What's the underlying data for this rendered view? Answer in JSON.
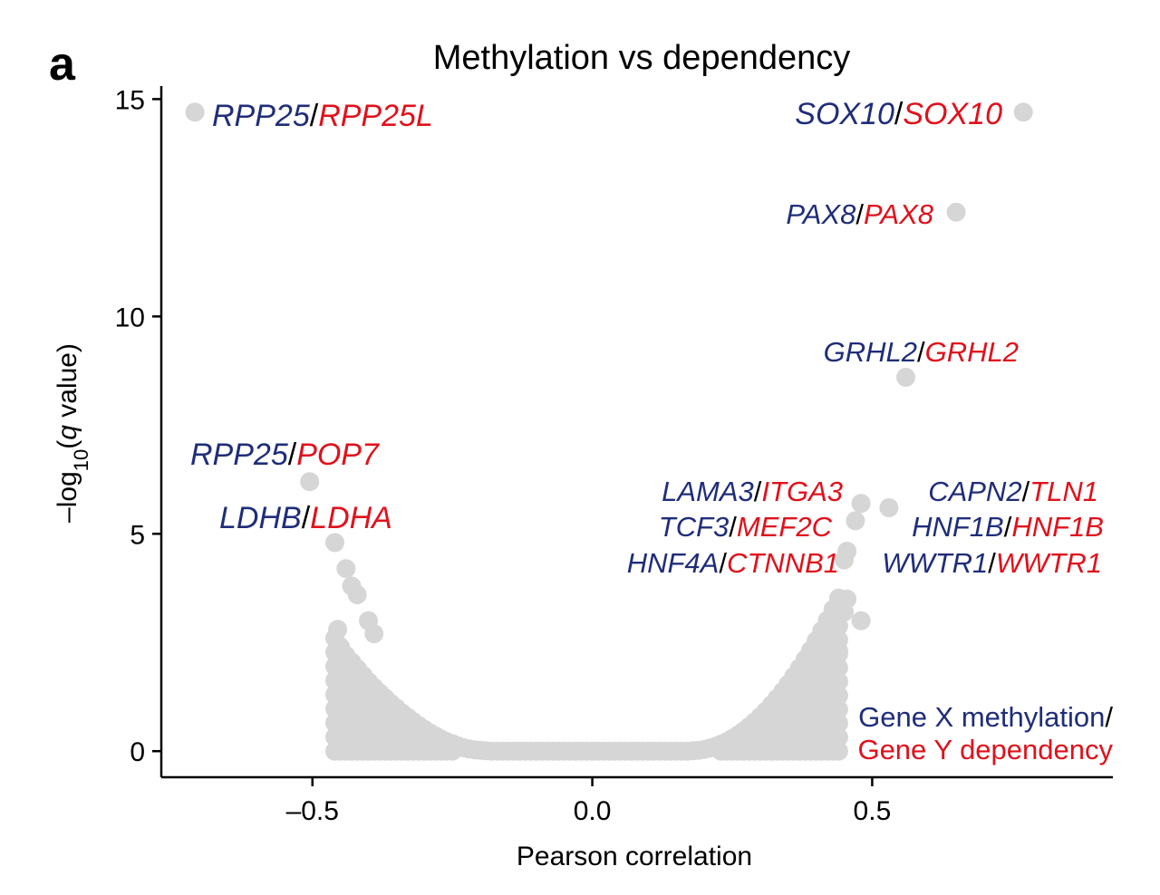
{
  "chart_data": {
    "type": "scatter",
    "panel_label": "a",
    "title": "Methylation vs dependency",
    "xlabel": "Pearson correlation",
    "ylabel": {
      "prefix": "–log",
      "sub": "10",
      "open": "(",
      "italic": "q",
      "rest": " value)"
    },
    "xlim": [
      -0.77,
      0.93
    ],
    "ylim": [
      -0.6,
      15.3
    ],
    "x_ticks": [
      {
        "value": -0.5,
        "label": "–0.5"
      },
      {
        "value": 0.0,
        "label": "0.0"
      },
      {
        "value": 0.5,
        "label": "0.5"
      }
    ],
    "y_ticks": [
      {
        "value": 0,
        "label": "0"
      },
      {
        "value": 5,
        "label": "5"
      },
      {
        "value": 10,
        "label": "10"
      },
      {
        "value": 15,
        "label": "15"
      }
    ],
    "grid": false,
    "point_color": "#d6d6d6",
    "colors": {
      "methylation": "#1f2d7a",
      "dependency": "#e0111b",
      "separator": "#000000"
    },
    "bulk_points": {
      "x": [
        -0.46,
        -0.45,
        -0.44,
        -0.43,
        -0.42,
        -0.41,
        -0.4,
        -0.39,
        -0.38,
        -0.37,
        -0.36,
        -0.35,
        -0.34,
        -0.33,
        -0.32,
        -0.31,
        -0.3,
        -0.29,
        -0.28,
        -0.27,
        -0.26,
        -0.25,
        -0.24,
        -0.23,
        -0.22,
        -0.21,
        -0.2,
        -0.19,
        -0.18,
        -0.17,
        -0.16,
        -0.15,
        -0.14,
        -0.13,
        -0.12,
        -0.11,
        -0.1,
        -0.09,
        -0.08,
        -0.07,
        -0.06,
        -0.05,
        -0.04,
        -0.03,
        -0.02,
        -0.01,
        0.0,
        0.01,
        0.02,
        0.03,
        0.04,
        0.05,
        0.06,
        0.07,
        0.08,
        0.09,
        0.1,
        0.11,
        0.12,
        0.13,
        0.14,
        0.15,
        0.16,
        0.17,
        0.18,
        0.19,
        0.2,
        0.21,
        0.22,
        0.23,
        0.24,
        0.25,
        0.26,
        0.27,
        0.28,
        0.29,
        0.3,
        0.31,
        0.32,
        0.33,
        0.34,
        0.35,
        0.36,
        0.37,
        0.38,
        0.39,
        0.4,
        0.41,
        0.42,
        0.43,
        0.44
      ],
      "y": [
        2.6,
        2.4,
        2.2,
        2.05,
        1.9,
        1.75,
        1.6,
        1.47,
        1.34,
        1.22,
        1.1,
        0.99,
        0.88,
        0.78,
        0.68,
        0.59,
        0.5,
        0.42,
        0.35,
        0.28,
        0.22,
        0.17,
        0.12,
        0.08,
        0.05,
        0.03,
        0.02,
        0.01,
        0.0,
        0.0,
        0.0,
        0.0,
        0.0,
        0.0,
        0.0,
        0.0,
        0.0,
        0.0,
        0.0,
        0.0,
        0.0,
        0.0,
        0.0,
        0.0,
        0.0,
        0.0,
        0.0,
        0.0,
        0.0,
        0.0,
        0.0,
        0.0,
        0.0,
        0.0,
        0.0,
        0.0,
        0.0,
        0.0,
        0.0,
        0.0,
        0.0,
        0.0,
        0.0,
        0.0,
        0.01,
        0.02,
        0.04,
        0.07,
        0.11,
        0.16,
        0.22,
        0.29,
        0.37,
        0.46,
        0.56,
        0.67,
        0.79,
        0.92,
        1.06,
        1.21,
        1.37,
        1.54,
        1.72,
        1.91,
        2.11,
        2.32,
        2.54,
        2.77,
        3.01,
        3.26,
        3.52
      ]
    },
    "tail_points": [
      {
        "x": -0.71,
        "y": 14.7
      },
      {
        "x": 0.77,
        "y": 14.7
      },
      {
        "x": 0.65,
        "y": 12.4
      },
      {
        "x": 0.56,
        "y": 8.6
      },
      {
        "x": -0.505,
        "y": 6.2
      },
      {
        "x": -0.46,
        "y": 4.8
      },
      {
        "x": -0.44,
        "y": 4.2
      },
      {
        "x": -0.43,
        "y": 3.8
      },
      {
        "x": -0.42,
        "y": 3.6
      },
      {
        "x": -0.4,
        "y": 3.0
      },
      {
        "x": -0.39,
        "y": 2.7
      },
      {
        "x": -0.455,
        "y": 2.8
      },
      {
        "x": 0.48,
        "y": 5.7
      },
      {
        "x": 0.53,
        "y": 5.6
      },
      {
        "x": 0.47,
        "y": 5.3
      },
      {
        "x": 0.455,
        "y": 4.6
      },
      {
        "x": 0.45,
        "y": 4.4
      },
      {
        "x": 0.455,
        "y": 3.5
      },
      {
        "x": 0.45,
        "y": 3.2
      },
      {
        "x": 0.48,
        "y": 3.0
      },
      {
        "x": 0.42,
        "y": 3.0
      },
      {
        "x": 0.425,
        "y": 2.6
      },
      {
        "x": 0.44,
        "y": 2.3
      },
      {
        "x": 0.425,
        "y": 2.0
      },
      {
        "x": 0.43,
        "y": 1.7
      }
    ],
    "annotations": [
      {
        "methylation": "RPP25",
        "dependency": "RPP25L",
        "x": -0.71,
        "y": 14.7,
        "size": "large"
      },
      {
        "methylation": "SOX10",
        "dependency": "SOX10",
        "x": 0.77,
        "y": 14.7,
        "size": "large"
      },
      {
        "methylation": "PAX8",
        "dependency": "PAX8",
        "x": 0.65,
        "y": 12.4,
        "size": "small"
      },
      {
        "methylation": "GRHL2",
        "dependency": "GRHL2",
        "x": 0.56,
        "y": 8.6,
        "size": "small"
      },
      {
        "methylation": "RPP25",
        "dependency": "POP7",
        "x": -0.505,
        "y": 6.2,
        "size": "large"
      },
      {
        "methylation": "LDHB",
        "dependency": "LDHA",
        "x": -0.46,
        "y": 4.8,
        "size": "large"
      },
      {
        "methylation": "LAMA3",
        "dependency": "ITGA3",
        "x": 0.48,
        "y": 5.7,
        "size": "small"
      },
      {
        "methylation": "TCF3",
        "dependency": "MEF2C",
        "x": 0.47,
        "y": 5.3,
        "size": "small"
      },
      {
        "methylation": "HNF4A",
        "dependency": "CTNNB1",
        "x": 0.455,
        "y": 4.6,
        "size": "small"
      },
      {
        "methylation": "CAPN2",
        "dependency": "TLN1",
        "x": 0.53,
        "y": 5.6,
        "size": "small"
      },
      {
        "methylation": "HNF1B",
        "dependency": "HNF1B",
        "x": 0.5,
        "y": 5.0,
        "size": "small"
      },
      {
        "methylation": "WWTR1",
        "dependency": "WWTR1",
        "x": 0.48,
        "y": 4.3,
        "size": "small"
      }
    ],
    "separator": "/",
    "legend": {
      "line1": "Gene X methylation",
      "line1_suffix": "/",
      "line2": "Gene Y dependency",
      "placement": "bottom-right"
    }
  }
}
